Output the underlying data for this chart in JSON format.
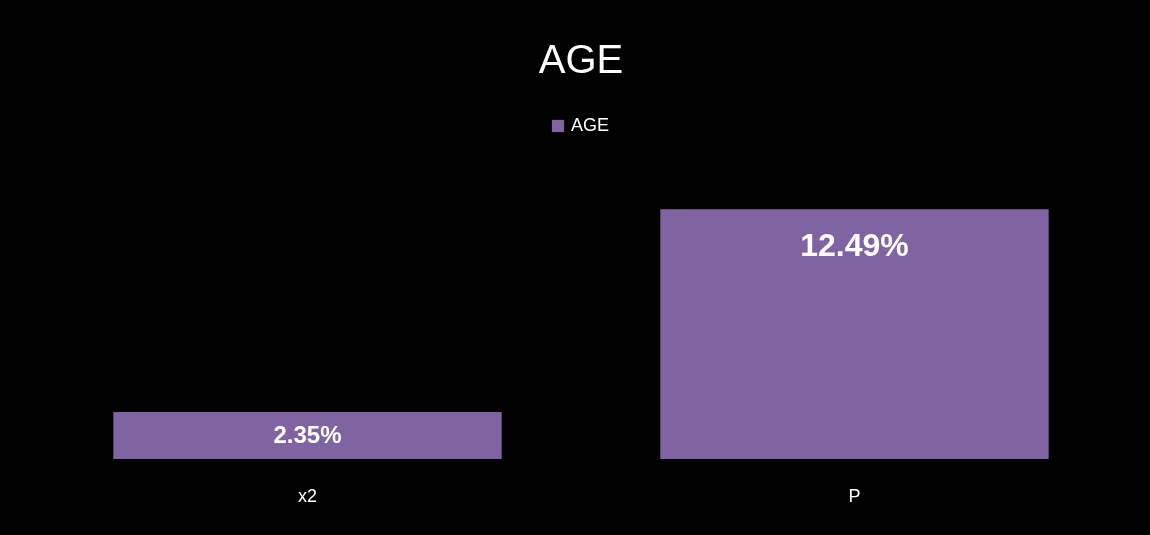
{
  "chart_data": {
    "type": "bar",
    "title": "AGE",
    "categories": [
      "x2",
      "P"
    ],
    "series": [
      {
        "name": "AGE",
        "color": "#8064a2",
        "values": [
          2.35,
          12.49
        ],
        "value_labels": [
          "2.35%",
          "12.49%"
        ]
      }
    ],
    "legend": "top"
  }
}
